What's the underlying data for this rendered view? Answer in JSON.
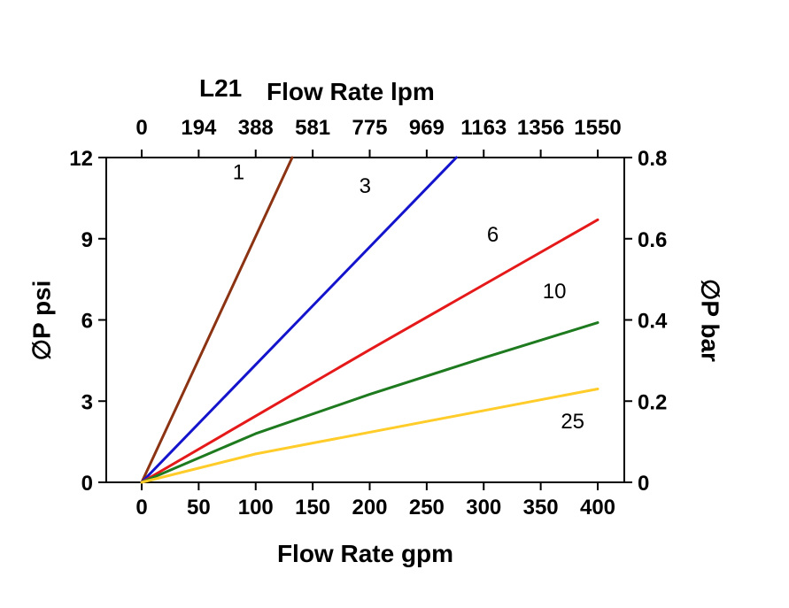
{
  "chart_data": {
    "type": "line",
    "title": "L21",
    "top_axis": {
      "label": "Flow Rate lpm",
      "ticks": [
        "0",
        "194",
        "388",
        "581",
        "775",
        "969",
        "1163",
        "1356",
        "1550"
      ]
    },
    "bottom_axis": {
      "label": "Flow Rate gpm",
      "ticks": [
        "0",
        "50",
        "100",
        "150",
        "200",
        "250",
        "300",
        "350",
        "400"
      ],
      "range": [
        0,
        400
      ]
    },
    "left_axis": {
      "label": "∅P psi",
      "ticks": [
        "0",
        "3",
        "6",
        "9",
        "12"
      ],
      "range": [
        0,
        12
      ]
    },
    "right_axis": {
      "label": "∅P bar",
      "ticks": [
        "0",
        "0.2",
        "0.4",
        "0.6",
        "0.8"
      ],
      "range": [
        0,
        0.8
      ]
    },
    "grid": false,
    "legend": "inline-labels",
    "series": [
      {
        "name": "1",
        "color": "#8B3312",
        "label_pos": [
          85,
          11.2
        ],
        "points": [
          [
            0,
            0
          ],
          [
            66,
            6
          ],
          [
            132,
            12
          ]
        ]
      },
      {
        "name": "3",
        "color": "#1414CC",
        "label_pos": [
          196,
          10.7
        ],
        "points": [
          [
            0,
            0
          ],
          [
            138,
            6
          ],
          [
            276,
            12
          ]
        ]
      },
      {
        "name": "6",
        "color": "#E51919",
        "label_pos": [
          308,
          8.9
        ],
        "points": [
          [
            0,
            0
          ],
          [
            100,
            2.45
          ],
          [
            200,
            4.9
          ],
          [
            300,
            7.3
          ],
          [
            400,
            9.7
          ]
        ]
      },
      {
        "name": "10",
        "color": "#1E7A1E",
        "label_pos": [
          362,
          6.8
        ],
        "points": [
          [
            0,
            0
          ],
          [
            50,
            0.9
          ],
          [
            100,
            1.8
          ],
          [
            200,
            3.25
          ],
          [
            300,
            4.6
          ],
          [
            400,
            5.9
          ]
        ]
      },
      {
        "name": "25",
        "color": "#FFCC29",
        "label_pos": [
          378,
          2.0
        ],
        "points": [
          [
            0,
            0
          ],
          [
            100,
            1.05
          ],
          [
            150,
            1.45
          ],
          [
            200,
            1.85
          ],
          [
            300,
            2.65
          ],
          [
            400,
            3.45
          ]
        ]
      }
    ]
  }
}
